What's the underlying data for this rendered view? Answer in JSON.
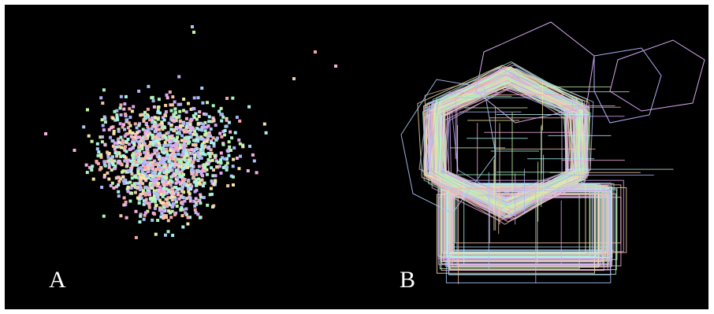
{
  "figure": {
    "panels": [
      {
        "id": "a",
        "label": "A"
      },
      {
        "id": "b",
        "label": "B"
      }
    ],
    "background": "#000000",
    "palette": [
      "#f4a6a6",
      "#a6f4c1",
      "#a6c8f4",
      "#f4e6a6",
      "#d8a6f4",
      "#a6f4f0",
      "#f4c6a6",
      "#c6f4a6",
      "#b0b0f8",
      "#f8b0e0"
    ]
  }
}
